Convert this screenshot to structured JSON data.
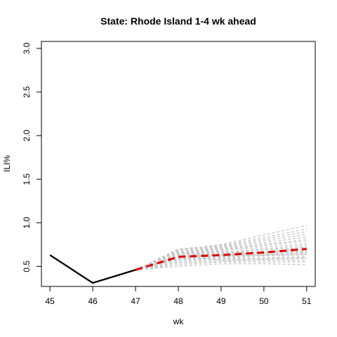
{
  "chart_data": {
    "type": "line",
    "title": "State: Rhode Island 1-4 wk ahead",
    "xlabel": "wk",
    "ylabel": "ILI%",
    "xlim": [
      44.8,
      51.2
    ],
    "ylim": [
      0.27,
      3.08
    ],
    "x_ticks": [
      "45",
      "46",
      "47",
      "48",
      "49",
      "50",
      "51"
    ],
    "y_ticks": [
      "0.5",
      "1.0",
      "1.5",
      "2.0",
      "2.5",
      "3.0"
    ],
    "grid": false,
    "observed": {
      "color": "#000000",
      "x": [
        45,
        46,
        47
      ],
      "y": [
        0.63,
        0.31,
        0.46
      ]
    },
    "forecast_mean": {
      "color": "#e00000",
      "x": [
        47,
        48,
        49,
        50,
        51
      ],
      "y": [
        0.46,
        0.61,
        0.63,
        0.66,
        0.7
      ]
    },
    "trajectories": {
      "color": "#c8c8c8",
      "x": [
        47,
        48,
        49,
        50,
        51
      ],
      "paths": [
        [
          0.46,
          0.5,
          0.53,
          0.53,
          0.52
        ],
        [
          0.46,
          0.52,
          0.55,
          0.55,
          0.55
        ],
        [
          0.46,
          0.54,
          0.56,
          0.57,
          0.57
        ],
        [
          0.46,
          0.55,
          0.58,
          0.59,
          0.6
        ],
        [
          0.46,
          0.57,
          0.59,
          0.6,
          0.61
        ],
        [
          0.46,
          0.58,
          0.6,
          0.62,
          0.63
        ],
        [
          0.46,
          0.59,
          0.61,
          0.63,
          0.65
        ],
        [
          0.46,
          0.6,
          0.62,
          0.64,
          0.67
        ],
        [
          0.46,
          0.61,
          0.63,
          0.66,
          0.68
        ],
        [
          0.46,
          0.62,
          0.64,
          0.67,
          0.7
        ],
        [
          0.46,
          0.63,
          0.65,
          0.69,
          0.72
        ],
        [
          0.46,
          0.64,
          0.66,
          0.7,
          0.74
        ],
        [
          0.46,
          0.65,
          0.68,
          0.72,
          0.76
        ],
        [
          0.46,
          0.66,
          0.69,
          0.74,
          0.79
        ],
        [
          0.46,
          0.67,
          0.7,
          0.75,
          0.81
        ],
        [
          0.46,
          0.68,
          0.71,
          0.77,
          0.84
        ],
        [
          0.46,
          0.69,
          0.72,
          0.79,
          0.87
        ],
        [
          0.46,
          0.7,
          0.73,
          0.81,
          0.9
        ],
        [
          0.46,
          0.7,
          0.74,
          0.83,
          0.93
        ],
        [
          0.46,
          0.69,
          0.75,
          0.86,
          0.97
        ],
        [
          0.46,
          0.66,
          0.62,
          0.63,
          0.64
        ],
        [
          0.46,
          0.58,
          0.62,
          0.66,
          0.72
        ],
        [
          0.46,
          0.62,
          0.57,
          0.58,
          0.59
        ],
        [
          0.46,
          0.64,
          0.67,
          0.65,
          0.66
        ]
      ]
    }
  }
}
